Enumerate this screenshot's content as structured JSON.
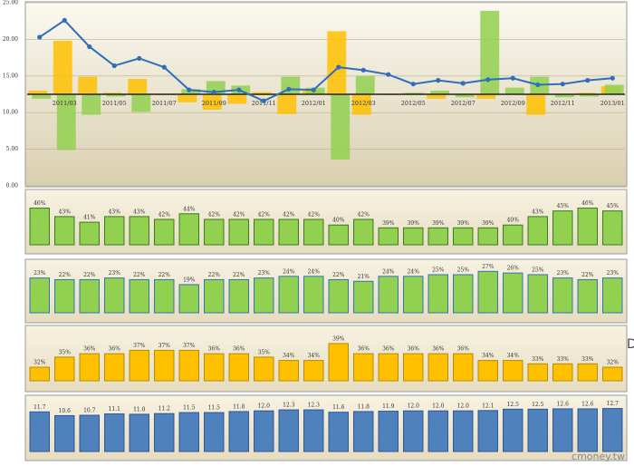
{
  "chart_data": [
    {
      "type": "combo",
      "categories": [
        null,
        "2011/03",
        null,
        "2011/05",
        null,
        "2011/07",
        null,
        "2011/09",
        null,
        "2011/11",
        null,
        "2012/01",
        null,
        "2012/03",
        null,
        "2012/05",
        null,
        "2012/07",
        null,
        "2012/09",
        null,
        "2012/11",
        null,
        "2013/01"
      ],
      "ylim": [
        0,
        25
      ],
      "yticks": [
        {
          "value": 0,
          "label": "0.00"
        },
        {
          "value": 5,
          "label": "5.00"
        },
        {
          "value": 10,
          "label": "10.00"
        },
        {
          "value": 15,
          "label": "15.00"
        },
        {
          "value": 20,
          "label": "20.00"
        },
        {
          "value": 25,
          "label": "25.00"
        }
      ],
      "grid": true,
      "baseline": 12.5,
      "series": [
        {
          "type": "bar",
          "color": "#ffc000",
          "values": [
            13.0,
            19.8,
            14.9,
            12.7,
            14.6,
            12.6,
            11.4,
            10.4,
            11.2,
            12.8,
            9.8,
            13.0,
            21.1,
            9.7,
            12.6,
            12.7,
            11.9,
            12.6,
            11.9,
            12.5,
            9.7,
            12.6,
            12.7,
            13.6
          ]
        },
        {
          "type": "bar",
          "color": "#92d050",
          "values": [
            11.9,
            4.9,
            9.7,
            12.2,
            10.1,
            12.4,
            13.2,
            14.3,
            13.7,
            12.4,
            14.9,
            13.4,
            3.6,
            15.0,
            12.4,
            12.7,
            13.0,
            12.1,
            23.9,
            13.4,
            14.9,
            12.1,
            12.2,
            13.8
          ]
        },
        {
          "type": "line",
          "color": "#2f6eba",
          "values": [
            20.3,
            22.6,
            19.0,
            16.4,
            17.4,
            16.2,
            13.1,
            12.8,
            13.1,
            11.6,
            13.2,
            13.1,
            16.2,
            15.8,
            15.2,
            13.9,
            14.4,
            14.0,
            14.5,
            14.7,
            13.8,
            13.9,
            14.4,
            14.7
          ]
        }
      ]
    },
    {
      "type": "bar",
      "color": "#92d050",
      "ylim": [
        33,
        51
      ],
      "values": [
        46,
        43,
        41,
        43,
        43,
        42,
        44,
        42,
        42,
        42,
        42,
        42,
        40,
        42,
        39,
        39,
        39,
        39,
        39,
        40,
        43,
        45,
        46,
        45
      ],
      "value_labels": [
        "46%",
        "43%",
        "41%",
        "43%",
        "43%",
        "42%",
        "44%",
        "42%",
        "42%",
        "42%",
        "42%",
        "42%",
        "40%",
        "42%",
        "39%",
        "39%",
        "39%",
        "39%",
        "39%",
        "40%",
        "43%",
        "45%",
        "46%",
        "45%"
      ]
    },
    {
      "type": "bar",
      "color": "#92d050",
      "ylim": [
        2,
        31
      ],
      "values": [
        23,
        22,
        22,
        23,
        22,
        22,
        19,
        22,
        22,
        23,
        24,
        24,
        22,
        21,
        24,
        24,
        25,
        25,
        27,
        26,
        25,
        23,
        22,
        23
      ],
      "value_labels": [
        "23%",
        "22%",
        "22%",
        "23%",
        "22%",
        "22%",
        "19%",
        "22%",
        "22%",
        "23%",
        "24%",
        "24%",
        "22%",
        "21%",
        "24%",
        "24%",
        "25%",
        "25%",
        "27%",
        "26%",
        "25%",
        "23%",
        "22%",
        "23%"
      ]
    },
    {
      "type": "bar",
      "color": "#ffc000",
      "ylim": [
        28,
        43
      ],
      "values": [
        32,
        35,
        36,
        36,
        37,
        37,
        37,
        36,
        36,
        35,
        34,
        34,
        39,
        36,
        36,
        36,
        36,
        36,
        34,
        34,
        33,
        33,
        33,
        32
      ],
      "value_labels": [
        "32%",
        "35%",
        "36%",
        "36%",
        "37%",
        "37%",
        "37%",
        "36%",
        "36%",
        "35%",
        "34%",
        "34%",
        "39%",
        "36%",
        "36%",
        "36%",
        "36%",
        "36%",
        "34%",
        "34%",
        "33%",
        "33%",
        "33%",
        "32%"
      ]
    },
    {
      "type": "bar",
      "color": "#4f81bd",
      "ylim": [
        0,
        15
      ],
      "values": [
        11.7,
        10.6,
        10.7,
        11.1,
        11.0,
        11.2,
        11.5,
        11.5,
        11.8,
        12.0,
        12.3,
        12.3,
        11.6,
        11.8,
        11.9,
        12.0,
        12.0,
        12.0,
        12.1,
        12.5,
        12.5,
        12.6,
        12.6,
        12.7
      ],
      "value_labels": [
        "11.7",
        "10.6",
        "10.7",
        "11.1",
        "11.0",
        "11.2",
        "11.5",
        "11.5",
        "11.8",
        "12.0",
        "12.3",
        "12.3",
        "11.6",
        "11.8",
        "11.9",
        "12.0",
        "12.0",
        "12.0",
        "12.1",
        "12.5",
        "12.5",
        "12.6",
        "12.6",
        "12.7"
      ]
    }
  ],
  "watermark": "cmoney.tw",
  "side_mark": "D"
}
